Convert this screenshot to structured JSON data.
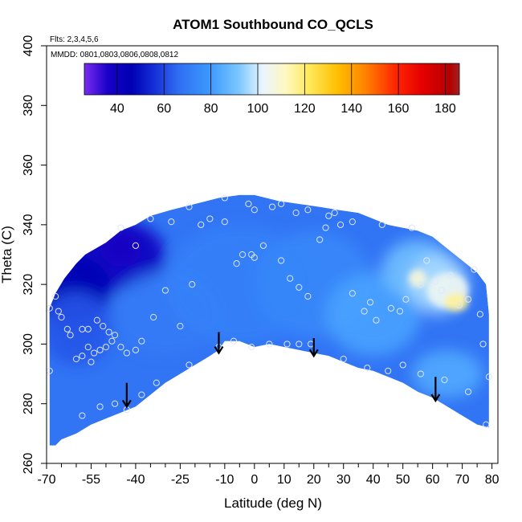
{
  "chart_data": {
    "type": "heatmap",
    "title": "ATOM1 Southbound CO_QCLS",
    "flights_note": "Flts: 2,3,4,5,6",
    "dates_note": "MMDD: 0801,0803,0806,0808,0812",
    "xlabel": "Latitude (deg N)",
    "ylabel": "Theta (C)",
    "xlim": [
      -70,
      82
    ],
    "ylim": [
      260,
      400
    ],
    "x_ticks": [
      -70,
      -55,
      -40,
      -25,
      -10,
      0,
      10,
      20,
      30,
      40,
      50,
      60,
      70,
      80
    ],
    "x_tick_labels": [
      "-70",
      "-55",
      "-40",
      "-25",
      "-10",
      "0",
      "10",
      "20",
      "30",
      "40",
      "50",
      "60",
      "70",
      "80"
    ],
    "x_minor_ticks": [
      -65,
      -60,
      -50,
      -45,
      -35,
      -30,
      -20,
      -15,
      -5,
      5,
      15,
      25,
      35,
      45,
      55,
      65,
      75
    ],
    "y_ticks": [
      260,
      280,
      300,
      320,
      340,
      360,
      380,
      400
    ],
    "y_tick_labels": [
      "260",
      "280",
      "300",
      "320",
      "340",
      "360",
      "380",
      "400"
    ],
    "colorbar": {
      "range": [
        26,
        186
      ],
      "ticks": [
        40,
        60,
        80,
        100,
        120,
        140,
        160,
        180
      ],
      "tick_labels": [
        "40",
        "60",
        "80",
        "100",
        "120",
        "140",
        "160",
        "180"
      ],
      "stops": [
        {
          "v": 26,
          "c": "#7a2cf0"
        },
        {
          "v": 36,
          "c": "#1a00c8"
        },
        {
          "v": 46,
          "c": "#0000b4"
        },
        {
          "v": 56,
          "c": "#1530d8"
        },
        {
          "v": 66,
          "c": "#2f6df2"
        },
        {
          "v": 80,
          "c": "#3d9bff"
        },
        {
          "v": 92,
          "c": "#7cc7ff"
        },
        {
          "v": 102,
          "c": "#e9f5ff"
        },
        {
          "v": 112,
          "c": "#fff8c0"
        },
        {
          "v": 122,
          "c": "#ffe95a"
        },
        {
          "v": 134,
          "c": "#ffbf00"
        },
        {
          "v": 146,
          "c": "#ff8200"
        },
        {
          "v": 158,
          "c": "#ff2a00"
        },
        {
          "v": 170,
          "c": "#e60000"
        },
        {
          "v": 182,
          "c": "#b40000"
        },
        {
          "v": 186,
          "c": "#a52020"
        }
      ]
    },
    "field_boundary": [
      [
        -69,
        266
      ],
      [
        -69,
        312
      ],
      [
        -67,
        317
      ],
      [
        -64,
        322
      ],
      [
        -60,
        327
      ],
      [
        -57,
        330
      ],
      [
        -50,
        334
      ],
      [
        -45,
        338
      ],
      [
        -40,
        340
      ],
      [
        -35,
        343
      ],
      [
        -28,
        345
      ],
      [
        -20,
        347
      ],
      [
        -12,
        349
      ],
      [
        -5,
        350
      ],
      [
        0,
        350
      ],
      [
        8,
        348
      ],
      [
        15,
        347
      ],
      [
        22,
        346
      ],
      [
        28,
        345
      ],
      [
        35,
        344
      ],
      [
        40,
        342
      ],
      [
        45,
        340
      ],
      [
        50,
        339
      ],
      [
        55,
        338
      ],
      [
        60,
        336
      ],
      [
        65,
        332
      ],
      [
        70,
        328
      ],
      [
        75,
        324
      ],
      [
        78,
        320
      ],
      [
        79,
        310
      ],
      [
        79,
        272
      ],
      [
        75,
        273
      ],
      [
        70,
        276
      ],
      [
        65,
        279
      ],
      [
        60,
        282
      ],
      [
        55,
        284
      ],
      [
        50,
        287
      ],
      [
        45,
        289
      ],
      [
        40,
        291
      ],
      [
        35,
        292
      ],
      [
        30,
        294
      ],
      [
        25,
        296
      ],
      [
        20,
        297
      ],
      [
        15,
        298
      ],
      [
        10,
        299
      ],
      [
        5,
        300
      ],
      [
        0,
        299
      ],
      [
        -5,
        301
      ],
      [
        -10,
        301
      ],
      [
        -12,
        298
      ],
      [
        -15,
        296
      ],
      [
        -20,
        293
      ],
      [
        -25,
        290
      ],
      [
        -30,
        287
      ],
      [
        -35,
        283
      ],
      [
        -40,
        279
      ],
      [
        -45,
        277
      ],
      [
        -50,
        275
      ],
      [
        -55,
        273
      ],
      [
        -60,
        270
      ],
      [
        -65,
        268
      ],
      [
        -67,
        266
      ]
    ],
    "field_features": [
      {
        "x": -45,
        "y": 332,
        "value": 30,
        "rx": 7,
        "ry": 6
      },
      {
        "x": -48,
        "y": 330,
        "value": 40,
        "rx": 18,
        "ry": 12
      },
      {
        "x": -62,
        "y": 318,
        "value": 46,
        "rx": 14,
        "ry": 12
      },
      {
        "x": -60,
        "y": 305,
        "value": 62,
        "rx": 12,
        "ry": 12
      },
      {
        "x": -30,
        "y": 310,
        "value": 70,
        "rx": 18,
        "ry": 14
      },
      {
        "x": -5,
        "y": 320,
        "value": 72,
        "rx": 25,
        "ry": 20
      },
      {
        "x": 20,
        "y": 320,
        "value": 74,
        "rx": 20,
        "ry": 18
      },
      {
        "x": 40,
        "y": 310,
        "value": 82,
        "rx": 16,
        "ry": 14
      },
      {
        "x": 55,
        "y": 325,
        "value": 90,
        "rx": 12,
        "ry": 10
      },
      {
        "x": 62,
        "y": 320,
        "value": 96,
        "rx": 10,
        "ry": 10
      },
      {
        "x": 65,
        "y": 318,
        "value": 104,
        "rx": 7,
        "ry": 6
      },
      {
        "x": 68,
        "y": 314,
        "value": 116,
        "rx": 4,
        "ry": 3
      },
      {
        "x": 55,
        "y": 322,
        "value": 108,
        "rx": 3,
        "ry": 3
      },
      {
        "x": 65,
        "y": 290,
        "value": 84,
        "rx": 12,
        "ry": 8
      }
    ],
    "observations": [
      [
        -69,
        312
      ],
      [
        -67,
        316
      ],
      [
        -66,
        311
      ],
      [
        -65,
        309
      ],
      [
        -63,
        305
      ],
      [
        -62,
        303
      ],
      [
        -58,
        305
      ],
      [
        -56,
        305
      ],
      [
        -53,
        308
      ],
      [
        -51,
        306
      ],
      [
        -49,
        304
      ],
      [
        -47,
        303
      ],
      [
        -48,
        301
      ],
      [
        -50,
        299
      ],
      [
        -52,
        298
      ],
      [
        -56,
        299
      ],
      [
        -58,
        296
      ],
      [
        -60,
        295
      ],
      [
        -55,
        294
      ],
      [
        -54,
        297
      ],
      [
        -45,
        299
      ],
      [
        -43,
        297
      ],
      [
        -40,
        298
      ],
      [
        -38,
        301
      ],
      [
        -34,
        309
      ],
      [
        -30,
        318
      ],
      [
        -25,
        306
      ],
      [
        -21,
        320
      ],
      [
        -18,
        340
      ],
      [
        -15,
        342
      ],
      [
        -10,
        341
      ],
      [
        -6,
        327
      ],
      [
        -4,
        330
      ],
      [
        -1,
        330
      ],
      [
        0,
        329
      ],
      [
        3,
        333
      ],
      [
        6,
        346
      ],
      [
        9,
        328
      ],
      [
        12,
        322
      ],
      [
        15,
        319
      ],
      [
        18,
        316
      ],
      [
        22,
        335
      ],
      [
        24,
        339
      ],
      [
        27,
        344
      ],
      [
        29,
        340
      ],
      [
        33,
        317
      ],
      [
        37,
        311
      ],
      [
        39,
        314
      ],
      [
        41,
        308
      ],
      [
        46,
        312
      ],
      [
        49,
        311
      ],
      [
        51,
        315
      ],
      [
        56,
        320
      ],
      [
        58,
        328
      ],
      [
        61,
        321
      ],
      [
        63,
        318
      ],
      [
        66,
        323
      ],
      [
        69,
        313
      ],
      [
        72,
        315
      ],
      [
        74,
        325
      ],
      [
        76,
        310
      ],
      [
        77,
        300
      ],
      [
        79,
        289
      ],
      [
        -69,
        291
      ],
      [
        -58,
        276
      ],
      [
        -52,
        279
      ],
      [
        -47,
        280
      ],
      [
        -43,
        278
      ],
      [
        -38,
        283
      ],
      [
        -33,
        287
      ],
      [
        -22,
        293
      ],
      [
        -12,
        299
      ],
      [
        -7,
        301
      ],
      [
        -1,
        299
      ],
      [
        5,
        300
      ],
      [
        11,
        300
      ],
      [
        15,
        300
      ],
      [
        19,
        300
      ],
      [
        30,
        295
      ],
      [
        38,
        292
      ],
      [
        45,
        291
      ],
      [
        50,
        293
      ],
      [
        56,
        290
      ],
      [
        64,
        288
      ],
      [
        72,
        284
      ],
      [
        78,
        273
      ],
      [
        -40,
        333
      ],
      [
        -45,
        339
      ],
      [
        -35,
        342
      ],
      [
        -28,
        341
      ],
      [
        -22,
        346
      ],
      [
        -10,
        349
      ],
      [
        -2,
        347
      ],
      [
        0,
        345
      ],
      [
        9,
        347
      ],
      [
        14,
        344
      ],
      [
        18,
        345
      ],
      [
        25,
        343
      ],
      [
        33,
        341
      ],
      [
        43,
        340
      ],
      [
        53,
        339
      ]
    ],
    "arrows": [
      {
        "x": -43,
        "y_from": 287,
        "y_to": 279
      },
      {
        "x": -12,
        "y_from": 304,
        "y_to": 297
      },
      {
        "x": 20,
        "y_from": 302,
        "y_to": 296
      },
      {
        "x": 61,
        "y_from": 289,
        "y_to": 281
      }
    ]
  }
}
